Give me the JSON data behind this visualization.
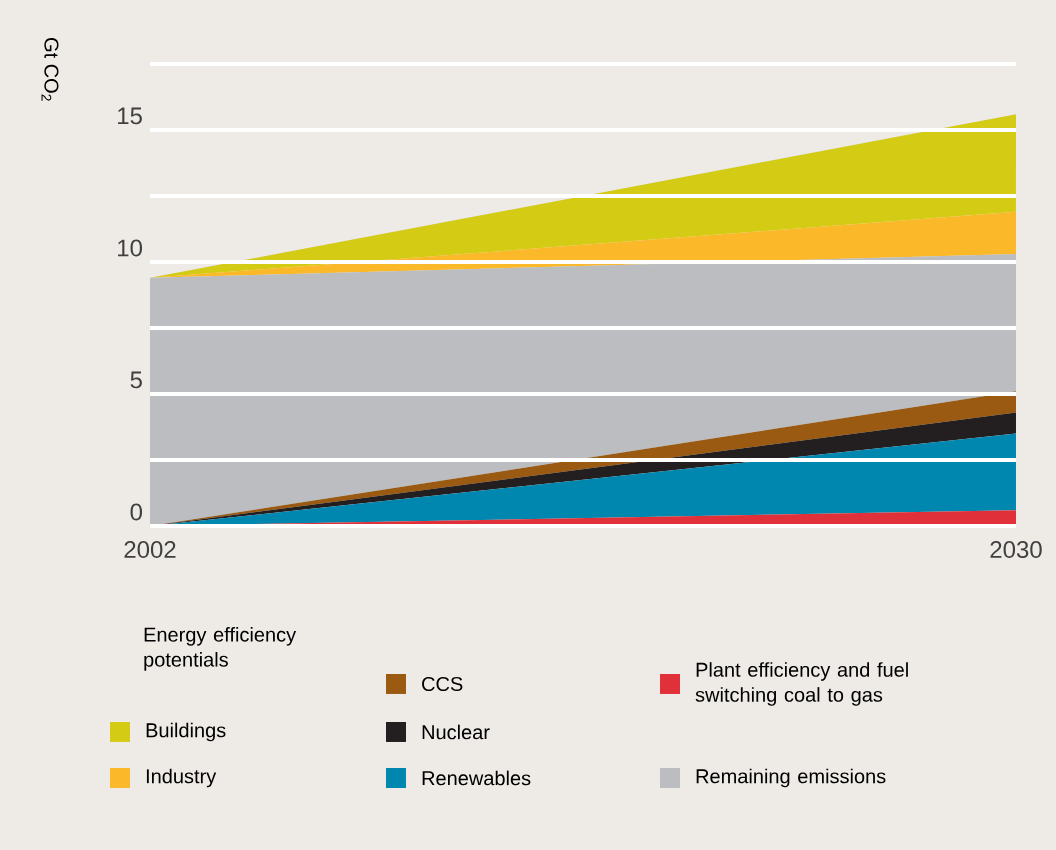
{
  "chart_data": {
    "type": "area",
    "stacked": true,
    "ylabel": "Gt CO$_{2}$",
    "legend_title": "Energy efficiency potentials",
    "x": [
      2002,
      2030
    ],
    "xlim": [
      2002,
      2030
    ],
    "xticks": [
      2002,
      2030
    ],
    "ylim": [
      0,
      17.5
    ],
    "yticks": [
      0,
      {
        "value": 2.5,
        "label": null
      },
      5,
      {
        "value": 7.5,
        "label": null
      },
      10,
      {
        "value": 12.5,
        "label": null
      },
      15,
      {
        "value": 17.5,
        "label": null
      }
    ],
    "grid": "y",
    "legend": "bottom",
    "series": [
      {
        "name": "Plant efficiency and fuel switching coal to gas",
        "color": "#e0303a",
        "values": [
          0,
          0.6
        ]
      },
      {
        "name": "Renewables",
        "color": "#0087b0",
        "values": [
          0,
          2.9
        ]
      },
      {
        "name": "Nuclear",
        "color": "#231f20",
        "values": [
          0,
          0.8
        ]
      },
      {
        "name": "CCS",
        "color": "#9a5a12",
        "values": [
          0,
          0.8
        ]
      },
      {
        "name": "Remaining emissions",
        "color": "#bcbdc0",
        "values": [
          9.4,
          5.2
        ]
      },
      {
        "name": "Industry",
        "color": "#fbb829",
        "values": [
          0,
          1.6
        ]
      },
      {
        "name": "Buildings",
        "color": "#d4cc14",
        "values": [
          0,
          3.7
        ]
      }
    ]
  }
}
